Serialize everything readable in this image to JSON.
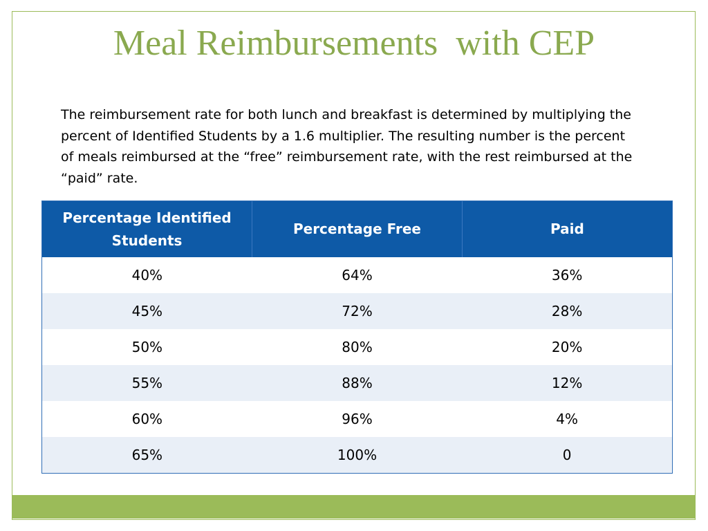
{
  "title": "Meal Reimbursements  with CEP",
  "body_text": "The reimbursement rate for both lunch and breakfast is determined by multiplying the percent of Identified Students by a 1.6 multiplier. The resulting number is the percent of meals reimbursed at the “free” reimbursement rate, with the rest reimbursed at the “paid” rate.",
  "table": {
    "headers": [
      "Percentage Identified Students",
      "Percentage Free",
      "Paid"
    ],
    "rows": [
      [
        "40%",
        "64%",
        "36%"
      ],
      [
        "45%",
        "72%",
        "28%"
      ],
      [
        "50%",
        "80%",
        "20%"
      ],
      [
        "55%",
        "88%",
        "12%"
      ],
      [
        "60%",
        "96%",
        "4%"
      ],
      [
        "65%",
        "100%",
        "0"
      ]
    ]
  },
  "colors": {
    "title": "#8aa94f",
    "accent_bar": "#9bbb59",
    "table_header": "#0e5aa7",
    "table_band": "#e9eff7"
  }
}
